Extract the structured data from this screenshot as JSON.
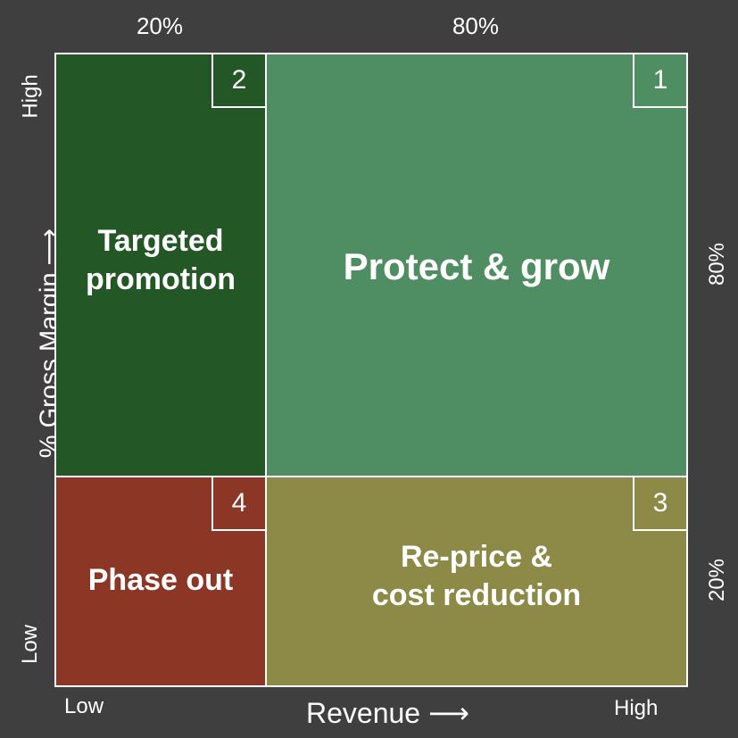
{
  "top_labels": {
    "left": "20%",
    "right": "80%"
  },
  "right_labels": {
    "top": "80%",
    "bottom": "20%"
  },
  "y_axis": {
    "title": "% Gross Margin ⟶",
    "high": "High",
    "low": "Low"
  },
  "x_axis": {
    "title": "Revenue ⟶",
    "low": "Low",
    "high": "High"
  },
  "quadrants": {
    "q2": {
      "number": "2",
      "line1": "Targeted",
      "line2": "promotion",
      "color": "#235826"
    },
    "q1": {
      "number": "1",
      "label": "Protect & grow",
      "color": "#4e8e62"
    },
    "q4": {
      "number": "4",
      "label": "Phase out",
      "color": "#8c3726"
    },
    "q3": {
      "number": "3",
      "line1": "Re-price &",
      "line2": "cost reduction",
      "color": "#8c8a46"
    }
  }
}
